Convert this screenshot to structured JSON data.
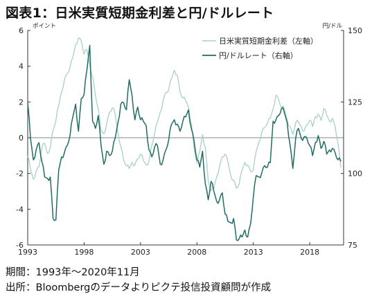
{
  "title": "図表1：日米実質短期金利差と円/ドルレート",
  "footer": {
    "period": "期間：1993年～2020年11月",
    "source": "出所：Bloombergのデータよりピクテ投信投資顧問が作成"
  },
  "colors": {
    "rate_diff": "#a9cfc6",
    "usdjpy": "#1f6b66",
    "axis": "#333333",
    "zero_line": "#888888"
  },
  "chart_data": {
    "type": "line",
    "x_range": [
      1993.0,
      2021.0
    ],
    "x_ticks": [
      1993,
      1998,
      2003,
      2008,
      2013,
      2018
    ],
    "y_left": {
      "label": "ポイント",
      "range": [
        -6,
        6
      ],
      "ticks": [
        6,
        4,
        2,
        0,
        -2,
        -4,
        -6
      ]
    },
    "y_right": {
      "label": "円/ドル",
      "range": [
        75,
        150
      ],
      "ticks": [
        150,
        125,
        100,
        75
      ]
    },
    "legend_position": "top-right",
    "series": [
      {
        "name": "日米実質短期金利差（左軸）",
        "axis": "left",
        "x": [
          1993.0,
          1993.25,
          1993.5,
          1993.75,
          1994.0,
          1994.25,
          1994.5,
          1994.75,
          1995.0,
          1995.25,
          1995.5,
          1995.75,
          1996.0,
          1996.25,
          1996.5,
          1996.75,
          1997.0,
          1997.25,
          1997.5,
          1997.75,
          1998.0,
          1998.25,
          1998.5,
          1998.75,
          1999.0,
          1999.25,
          1999.5,
          1999.75,
          2000.0,
          2000.25,
          2000.5,
          2000.75,
          2001.0,
          2001.25,
          2001.5,
          2001.75,
          2002.0,
          2002.25,
          2002.5,
          2002.75,
          2003.0,
          2003.25,
          2003.5,
          2003.75,
          2004.0,
          2004.25,
          2004.5,
          2004.75,
          2005.0,
          2005.25,
          2005.5,
          2005.75,
          2006.0,
          2006.25,
          2006.5,
          2006.75,
          2007.0,
          2007.25,
          2007.5,
          2007.75,
          2008.0,
          2008.25,
          2008.5,
          2008.75,
          2009.0,
          2009.25,
          2009.5,
          2009.75,
          2010.0,
          2010.25,
          2010.5,
          2010.75,
          2011.0,
          2011.25,
          2011.5,
          2011.75,
          2012.0,
          2012.25,
          2012.5,
          2012.75,
          2013.0,
          2013.25,
          2013.5,
          2013.75,
          2014.0,
          2014.25,
          2014.5,
          2014.75,
          2015.0,
          2015.25,
          2015.5,
          2015.75,
          2016.0,
          2016.25,
          2016.5,
          2016.75,
          2017.0,
          2017.25,
          2017.5,
          2017.75,
          2018.0,
          2018.25,
          2018.5,
          2018.75,
          2019.0,
          2019.25,
          2019.5,
          2019.75,
          2020.0,
          2020.25,
          2020.5,
          2020.75
        ],
        "values": [
          -1.0,
          -1.8,
          -2.3,
          -1.9,
          -1.6,
          -0.6,
          -0.3,
          -0.9,
          -0.5,
          0.4,
          1.0,
          1.8,
          2.6,
          3.2,
          3.6,
          3.9,
          4.5,
          5.2,
          5.6,
          5.4,
          4.7,
          4.9,
          4.1,
          3.4,
          2.4,
          1.6,
          0.4,
          0.2,
          0.8,
          1.4,
          1.7,
          1.3,
          0.3,
          -0.5,
          -1.2,
          -1.6,
          -1.7,
          -1.4,
          -1.5,
          -1.2,
          -0.9,
          -1.3,
          -1.5,
          -1.3,
          -0.4,
          0.2,
          0.9,
          1.4,
          2.1,
          2.5,
          2.7,
          3.3,
          3.8,
          3.5,
          2.6,
          2.2,
          2.1,
          1.7,
          0.8,
          -0.6,
          -1.4,
          -0.8,
          0.2,
          -0.6,
          -2.4,
          -3.0,
          -2.8,
          -2.2,
          -1.6,
          -1.1,
          -0.9,
          -1.4,
          -2.1,
          -2.4,
          -2.8,
          -2.6,
          -1.8,
          -1.4,
          -1.5,
          -1.9,
          -1.8,
          -0.8,
          -0.2,
          0.3,
          0.6,
          0.8,
          1.1,
          1.6,
          2.4,
          2.1,
          1.7,
          1.6,
          1.0,
          0.6,
          0.2,
          0.8,
          0.9,
          0.6,
          0.4,
          0.7,
          1.0,
          0.6,
          1.2,
          1.3,
          1.0,
          1.6,
          1.3,
          0.9,
          1.1,
          0.6,
          -0.3,
          -1.7
        ]
      },
      {
        "name": "円/ドルレート（右軸）",
        "axis": "right",
        "x": [
          1993.0,
          1993.25,
          1993.5,
          1993.75,
          1994.0,
          1994.25,
          1994.5,
          1994.75,
          1995.0,
          1995.25,
          1995.5,
          1995.75,
          1996.0,
          1996.25,
          1996.5,
          1996.75,
          1997.0,
          1997.25,
          1997.5,
          1997.75,
          1998.0,
          1998.25,
          1998.5,
          1998.75,
          1999.0,
          1999.25,
          1999.5,
          1999.75,
          2000.0,
          2000.25,
          2000.5,
          2000.75,
          2001.0,
          2001.25,
          2001.5,
          2001.75,
          2002.0,
          2002.25,
          2002.5,
          2002.75,
          2003.0,
          2003.25,
          2003.5,
          2003.75,
          2004.0,
          2004.25,
          2004.5,
          2004.75,
          2005.0,
          2005.25,
          2005.5,
          2005.75,
          2006.0,
          2006.25,
          2006.5,
          2006.75,
          2007.0,
          2007.25,
          2007.5,
          2007.75,
          2008.0,
          2008.25,
          2008.5,
          2008.75,
          2009.0,
          2009.25,
          2009.5,
          2009.75,
          2010.0,
          2010.25,
          2010.5,
          2010.75,
          2011.0,
          2011.25,
          2011.5,
          2011.75,
          2012.0,
          2012.25,
          2012.5,
          2012.75,
          2013.0,
          2013.25,
          2013.5,
          2013.75,
          2014.0,
          2014.25,
          2014.5,
          2014.75,
          2015.0,
          2015.25,
          2015.5,
          2015.75,
          2016.0,
          2016.25,
          2016.5,
          2016.75,
          2017.0,
          2017.25,
          2017.5,
          2017.75,
          2018.0,
          2018.25,
          2018.5,
          2018.75,
          2019.0,
          2019.25,
          2019.5,
          2019.75,
          2020.0,
          2020.25,
          2020.5,
          2020.75
        ],
        "values": [
          125,
          112,
          105,
          108,
          111,
          104,
          99,
          98,
          99,
          84,
          84,
          101,
          106,
          107,
          110,
          113,
          120,
          124,
          115,
          126,
          128,
          136,
          145,
          118,
          116,
          120,
          110,
          103,
          108,
          106,
          108,
          112,
          118,
          124,
          125,
          122,
          133,
          127,
          119,
          123,
          119,
          118,
          117,
          108,
          106,
          109,
          110,
          103,
          105,
          108,
          112,
          117,
          119,
          117,
          115,
          118,
          120,
          122,
          116,
          111,
          105,
          102,
          108,
          96,
          91,
          97,
          94,
          90,
          91,
          93,
          86,
          83,
          83,
          84,
          77,
          77,
          78,
          80,
          78,
          82,
          92,
          99,
          99,
          100,
          103,
          102,
          104,
          118,
          119,
          120,
          123,
          121,
          118,
          110,
          102,
          112,
          116,
          112,
          113,
          112,
          110,
          106,
          111,
          113,
          109,
          111,
          107,
          108,
          109,
          107,
          105,
          104
        ]
      }
    ]
  }
}
